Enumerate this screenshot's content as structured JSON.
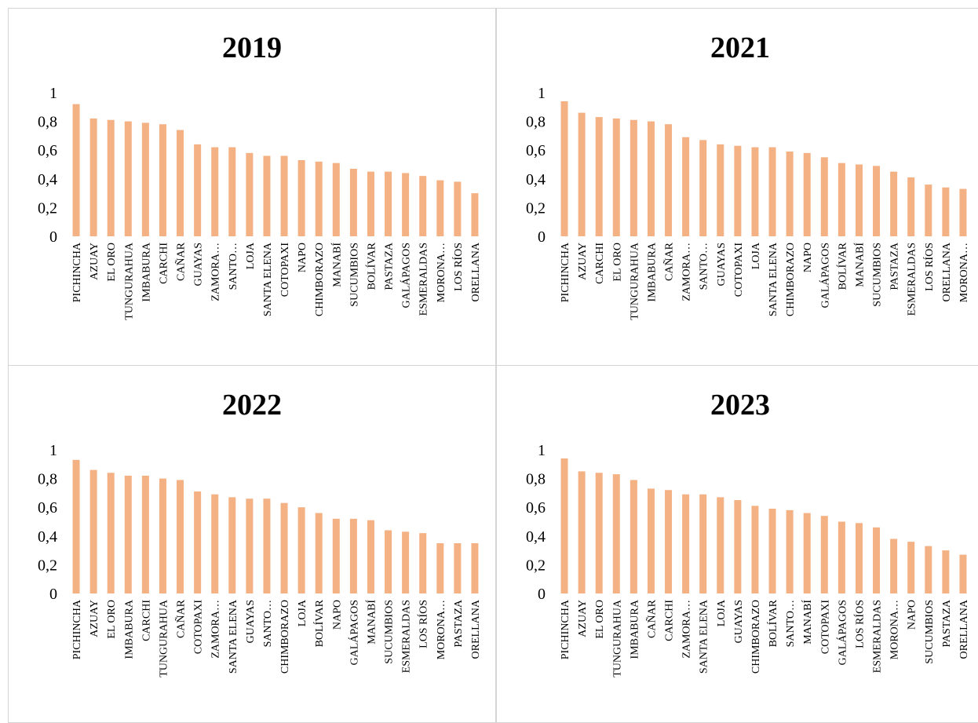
{
  "bar_color": "#f4b183",
  "chart_data": [
    {
      "type": "bar",
      "title": "2019",
      "categories": [
        "PICHINCHA",
        "AZUAY",
        "EL ORO",
        "TUNGURAHUA",
        "IMBABURA",
        "CARCHI",
        "CAÑAR",
        "GUAYAS",
        "ZAMORA…",
        "SANTO…",
        "LOJA",
        "SANTA ELENA",
        "COTOPAXI",
        "NAPO",
        "CHIMBORAZO",
        "MANABÍ",
        "SUCUMBIOS",
        "BOLÍVAR",
        "PASTAZA",
        "GALÁPAGOS",
        "ESMERALDAS",
        "MORONA…",
        "LOS RÍOS",
        "ORELLANA"
      ],
      "values": [
        0.92,
        0.82,
        0.81,
        0.8,
        0.79,
        0.78,
        0.74,
        0.64,
        0.62,
        0.62,
        0.58,
        0.56,
        0.56,
        0.53,
        0.52,
        0.51,
        0.47,
        0.45,
        0.45,
        0.44,
        0.42,
        0.39,
        0.38,
        0.3
      ],
      "yticks": [
        "0",
        "0,2",
        "0,4",
        "0,6",
        "0,8",
        "1"
      ],
      "ylim": [
        0,
        1
      ]
    },
    {
      "type": "bar",
      "title": "2021",
      "categories": [
        "PICHINCHA",
        "AZUAY",
        "CARCHI",
        "EL ORO",
        "TUNGURAHUA",
        "IMBABURA",
        "CAÑAR",
        "ZAMORA…",
        "SANTO…",
        "GUAYAS",
        "COTOPAXI",
        "LOJA",
        "SANTA ELENA",
        "CHIMBORAZO",
        "NAPO",
        "GALÁPAGOS",
        "BOLÍVAR",
        "MANABÍ",
        "SUCUMBIOS",
        "PASTAZA",
        "ESMERALDAS",
        "LOS RÍOS",
        "ORELLANA",
        "MORONA…"
      ],
      "values": [
        0.94,
        0.86,
        0.83,
        0.82,
        0.81,
        0.8,
        0.78,
        0.69,
        0.67,
        0.64,
        0.63,
        0.62,
        0.62,
        0.59,
        0.58,
        0.55,
        0.51,
        0.5,
        0.49,
        0.45,
        0.41,
        0.36,
        0.34,
        0.33
      ],
      "yticks": [
        "0",
        "0,2",
        "0,4",
        "0,6",
        "0,8",
        "1"
      ],
      "ylim": [
        0,
        1
      ]
    },
    {
      "type": "bar",
      "title": "2022",
      "categories": [
        "PICHINCHA",
        "AZUAY",
        "EL ORO",
        "IMBABURA",
        "CARCHI",
        "TUNGURAHUA",
        "CAÑAR",
        "COTOPAXI",
        "ZAMORA…",
        "SANTA ELENA",
        "GUAYAS",
        "SANTO…",
        "CHIMBORAZO",
        "LOJA",
        "BOLÍVAR",
        "NAPO",
        "GALÁPAGOS",
        "MANABÍ",
        "SUCUMBIOS",
        "ESMERALDAS",
        "LOS RÍOS",
        "MORONA…",
        "PASTAZA",
        "ORELLANA"
      ],
      "values": [
        0.93,
        0.86,
        0.84,
        0.82,
        0.82,
        0.8,
        0.79,
        0.71,
        0.69,
        0.67,
        0.66,
        0.66,
        0.63,
        0.6,
        0.56,
        0.52,
        0.52,
        0.51,
        0.44,
        0.43,
        0.42,
        0.35,
        0.35,
        0.35
      ],
      "yticks": [
        "0",
        "0,2",
        "0,4",
        "0,6",
        "0,8",
        "1"
      ],
      "ylim": [
        0,
        1
      ]
    },
    {
      "type": "bar",
      "title": "2023",
      "categories": [
        "PICHINCHA",
        "AZUAY",
        "EL ORO",
        "TUNGURAHUA",
        "IMBABURA",
        "CAÑAR",
        "CARCHI",
        "ZAMORA…",
        "SANTA ELENA",
        "LOJA",
        "GUAYAS",
        "CHIMBORAZO",
        "BOLÍVAR",
        "SANTO…",
        "MANABÍ",
        "COTOPAXI",
        "GALÁPAGOS",
        "LOS RÍOS",
        "ESMERALDAS",
        "MORONA…",
        "NAPO",
        "SUCUMBIOS",
        "PASTAZA",
        "ORELLANA"
      ],
      "values": [
        0.94,
        0.85,
        0.84,
        0.83,
        0.79,
        0.73,
        0.72,
        0.69,
        0.69,
        0.67,
        0.65,
        0.61,
        0.59,
        0.58,
        0.56,
        0.54,
        0.5,
        0.49,
        0.46,
        0.38,
        0.36,
        0.33,
        0.3,
        0.27
      ],
      "yticks": [
        "0",
        "0,2",
        "0,4",
        "0,6",
        "0,8",
        "1"
      ],
      "ylim": [
        0,
        1
      ]
    }
  ]
}
